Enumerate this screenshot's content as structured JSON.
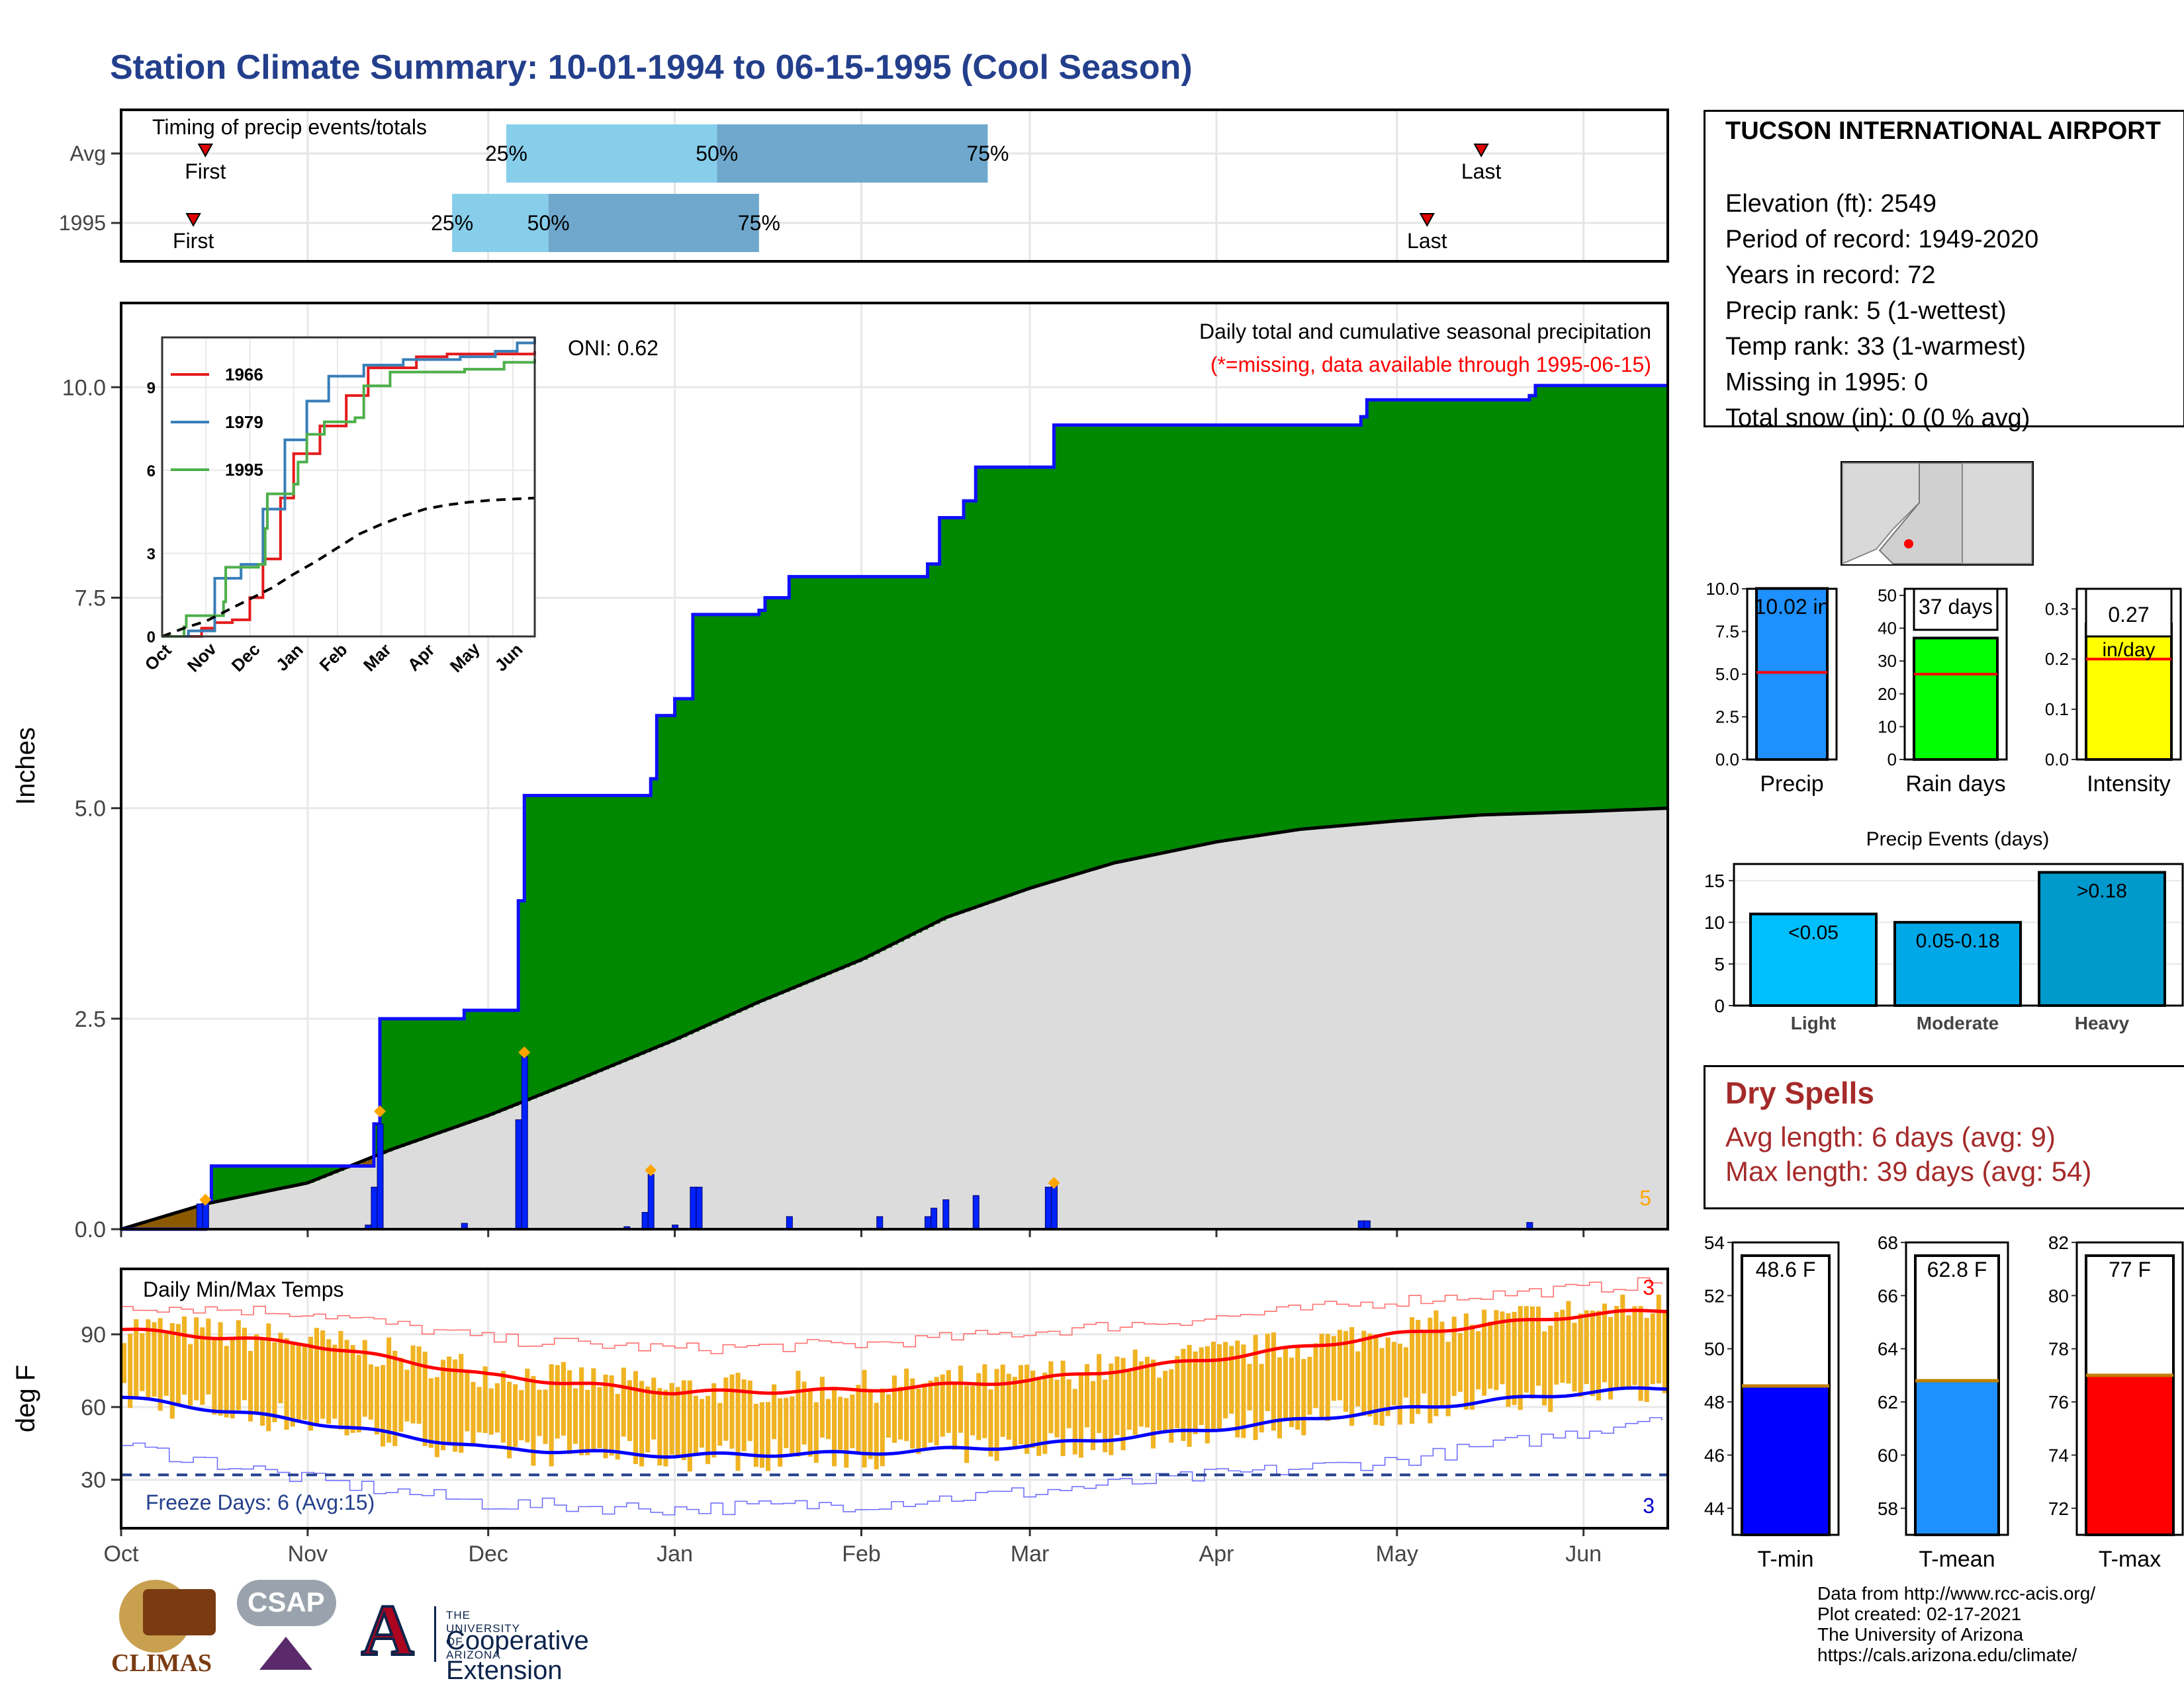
{
  "title": "Station Climate Summary: 10-01-1994 to 06-15-1995 (Cool Season)",
  "station": {
    "name": "TUCSON INTERNATIONAL AIRPORT",
    "lines": [
      "Elevation (ft): 2549",
      "Period of record: 1949-2020",
      "Years in record: 72",
      "Precip rank: 5 (1-wettest)",
      "Temp rank: 33 (1-warmest)",
      "Missing in 1995: 0",
      "Total snow (in): 0 (0 % avg)"
    ]
  },
  "timing_panel": {
    "label": "Timing of precip events/totals",
    "rows": [
      {
        "name": "Avg",
        "first_label": "First",
        "last_label": "Last",
        "first_date": "1994-10-15",
        "last_date": "1995-05-15",
        "q25": "1994-12-04",
        "q50": "1995-01-08",
        "q75": "1995-02-22",
        "q25_label": "25%",
        "q50_label": "50%",
        "q75_label": "75%"
      },
      {
        "name": "1995",
        "first_label": "First",
        "last_label": "Last",
        "first_date": "1994-10-13",
        "last_date": "1995-05-06",
        "q25": "1994-11-25",
        "q50": "1994-12-11",
        "q75": "1995-01-15",
        "q25_label": "25%",
        "q50_label": "50%",
        "q75_label": "75%"
      }
    ]
  },
  "chart_data": [
    {
      "type": "area",
      "title": "Daily total and cumulative seasonal precipitation",
      "subtitle": "(*=missing, data available through 1995-06-15)",
      "ylabel": "Inches",
      "ylim": [
        0,
        11
      ],
      "yticks": [
        "0.0",
        "2.5",
        "5.0",
        "7.5",
        "10.0"
      ],
      "xlim": [
        "1994-10-01",
        "1995-06-15"
      ],
      "oni_label": "ONI: 0.62",
      "rank_label": "5",
      "cumulative_1995": [
        [
          "1994-10-01",
          0
        ],
        [
          "1994-10-15",
          0.35
        ],
        [
          "1994-10-16",
          0.75
        ],
        [
          "1994-11-11",
          0.75
        ],
        [
          "1994-11-12",
          1.25
        ],
        [
          "1994-11-13",
          2.5
        ],
        [
          "1994-11-26",
          2.5
        ],
        [
          "1994-11-27",
          2.6
        ],
        [
          "1994-12-05",
          2.6
        ],
        [
          "1994-12-06",
          3.9
        ],
        [
          "1994-12-07",
          5.15
        ],
        [
          "1994-12-27",
          5.15
        ],
        [
          "1994-12-28",
          5.35
        ],
        [
          "1994-12-29",
          6.1
        ],
        [
          "1995-01-01",
          6.3
        ],
        [
          "1995-01-03",
          6.3
        ],
        [
          "1995-01-04",
          7.3
        ],
        [
          "1995-01-15",
          7.35
        ],
        [
          "1995-01-16",
          7.5
        ],
        [
          "1995-01-20",
          7.75
        ],
        [
          "1995-02-11",
          7.75
        ],
        [
          "1995-02-12",
          7.9
        ],
        [
          "1995-02-14",
          8.45
        ],
        [
          "1995-02-18",
          8.65
        ],
        [
          "1995-02-20",
          9.05
        ],
        [
          "1995-03-04",
          9.05
        ],
        [
          "1995-03-05",
          9.55
        ],
        [
          "1995-04-25",
          9.65
        ],
        [
          "1995-04-26",
          9.85
        ],
        [
          "1995-05-23",
          9.9
        ],
        [
          "1995-05-24",
          10.02
        ],
        [
          "1995-06-15",
          10.02
        ]
      ],
      "average_cumulative": [
        [
          "1994-10-01",
          0
        ],
        [
          "1994-10-15",
          0.3
        ],
        [
          "1994-11-01",
          0.55
        ],
        [
          "1994-11-15",
          0.95
        ],
        [
          "1994-12-01",
          1.35
        ],
        [
          "1994-12-15",
          1.75
        ],
        [
          "1995-01-01",
          2.25
        ],
        [
          "1995-01-15",
          2.7
        ],
        [
          "1995-02-01",
          3.2
        ],
        [
          "1995-02-15",
          3.7
        ],
        [
          "1995-03-01",
          4.05
        ],
        [
          "1995-03-15",
          4.35
        ],
        [
          "1995-04-01",
          4.6
        ],
        [
          "1995-04-15",
          4.75
        ],
        [
          "1995-05-01",
          4.85
        ],
        [
          "1995-05-15",
          4.92
        ],
        [
          "1995-06-01",
          4.96
        ],
        [
          "1995-06-15",
          5.0
        ]
      ],
      "daily_bars": [
        [
          "1994-10-14",
          0.3
        ],
        [
          "1994-10-15",
          0.35
        ],
        [
          "1994-11-11",
          0.05
        ],
        [
          "1994-11-12",
          0.5
        ],
        [
          "1994-11-13",
          1.25
        ],
        [
          "1994-11-27",
          0.07
        ],
        [
          "1994-12-06",
          1.3
        ],
        [
          "1994-12-07",
          2.05
        ],
        [
          "1994-12-24",
          0.03
        ],
        [
          "1994-12-27",
          0.2
        ],
        [
          "1994-12-28",
          0.65
        ],
        [
          "1995-01-01",
          0.05
        ],
        [
          "1995-01-04",
          0.5
        ],
        [
          "1995-01-05",
          0.5
        ],
        [
          "1995-01-20",
          0.15
        ],
        [
          "1995-02-04",
          0.15
        ],
        [
          "1995-02-12",
          0.15
        ],
        [
          "1995-02-13",
          0.25
        ],
        [
          "1995-02-15",
          0.35
        ],
        [
          "1995-02-20",
          0.4
        ],
        [
          "1995-03-04",
          0.5
        ],
        [
          "1995-03-05",
          0.55
        ],
        [
          "1995-04-25",
          0.1
        ],
        [
          "1995-04-26",
          0.1
        ],
        [
          "1995-05-23",
          0.08
        ]
      ],
      "record_markers": [
        [
          "1994-10-15",
          0.35
        ],
        [
          "1994-11-13",
          1.4
        ],
        [
          "1994-12-07",
          2.1
        ],
        [
          "1994-12-28",
          0.7
        ],
        [
          "1995-03-05",
          0.55
        ]
      ],
      "colors": {
        "above_avg": "#008800",
        "below_avg": "#8b5a00",
        "avg_fill": "#dcdcdc",
        "bars": "#0022ff",
        "markers": "#ffa500"
      }
    },
    {
      "type": "line",
      "title": "",
      "xlabels": [
        "Oct",
        "Nov",
        "Dec",
        "Jan",
        "Feb",
        "Mar",
        "Apr",
        "May",
        "Jun"
      ],
      "yticks": [
        "0",
        "3",
        "6",
        "9"
      ],
      "ylim": [
        0,
        10.8
      ],
      "series": [
        {
          "name": "1966",
          "color": "#e41a1c",
          "values": [
            [
              0,
              0
            ],
            [
              0.9,
              0.3
            ],
            [
              1.2,
              0.5
            ],
            [
              1.6,
              0.6
            ],
            [
              2.0,
              1.4
            ],
            [
              2.3,
              2.8
            ],
            [
              2.7,
              5.0
            ],
            [
              3.0,
              6.6
            ],
            [
              3.6,
              7.6
            ],
            [
              4.2,
              8.7
            ],
            [
              4.7,
              9.7
            ],
            [
              5.8,
              10.1
            ],
            [
              6.5,
              10.2
            ],
            [
              8.5,
              10.3
            ]
          ]
        },
        {
          "name": "1979",
          "color": "#377eb8",
          "values": [
            [
              0,
              0
            ],
            [
              0.6,
              0.2
            ],
            [
              1.2,
              2.1
            ],
            [
              1.8,
              2.6
            ],
            [
              2.3,
              4.6
            ],
            [
              2.8,
              7.1
            ],
            [
              3.3,
              8.5
            ],
            [
              3.8,
              9.4
            ],
            [
              4.6,
              9.8
            ],
            [
              5.5,
              10.0
            ],
            [
              6.8,
              10.1
            ],
            [
              7.6,
              10.3
            ],
            [
              8.1,
              10.6
            ],
            [
              8.5,
              10.8
            ]
          ]
        },
        {
          "name": "1995",
          "color": "#4daf4a",
          "values": [
            [
              0,
              0
            ],
            [
              0.5,
              0.35
            ],
            [
              0.55,
              0.75
            ],
            [
              1.4,
              1.25
            ],
            [
              1.45,
              2.5
            ],
            [
              2.2,
              2.6
            ],
            [
              2.35,
              3.9
            ],
            [
              2.4,
              5.15
            ],
            [
              3.0,
              5.5
            ],
            [
              3.1,
              6.3
            ],
            [
              3.3,
              7.3
            ],
            [
              3.7,
              7.75
            ],
            [
              4.4,
              7.9
            ],
            [
              4.6,
              9.05
            ],
            [
              5.2,
              9.55
            ],
            [
              6.9,
              9.65
            ],
            [
              7.8,
              9.9
            ],
            [
              8.5,
              10.02
            ]
          ]
        },
        {
          "name": "Average",
          "color": "#000000",
          "values": [
            [
              0,
              0
            ],
            [
              0.5,
              0.3
            ],
            [
              1.0,
              0.55
            ],
            [
              1.5,
              0.95
            ],
            [
              2.0,
              1.35
            ],
            [
              2.5,
              1.75
            ],
            [
              3.0,
              2.25
            ],
            [
              3.5,
              2.7
            ],
            [
              4.0,
              3.2
            ],
            [
              4.5,
              3.7
            ],
            [
              5.0,
              4.05
            ],
            [
              5.5,
              4.35
            ],
            [
              6.0,
              4.6
            ],
            [
              6.5,
              4.75
            ],
            [
              7.0,
              4.85
            ],
            [
              7.5,
              4.92
            ],
            [
              8.0,
              4.96
            ],
            [
              8.5,
              5.0
            ]
          ]
        }
      ]
    },
    {
      "type": "bar",
      "title": "Daily Min/Max Temps",
      "ylabel": "deg F",
      "yticks": [
        "30",
        "60",
        "90"
      ],
      "ylim": [
        10,
        117
      ],
      "xlabels": [
        "Oct",
        "Nov",
        "Dec",
        "Jan",
        "Feb",
        "Mar",
        "Apr",
        "May",
        "Jun"
      ],
      "freeze_label": "Freeze Days: 6 (Avg:15)",
      "freeze_line": 32,
      "max_rank_label": "3",
      "min_rank_label": "3",
      "normal_max": [
        [
          0,
          92
        ],
        [
          31,
          86
        ],
        [
          61,
          73
        ],
        [
          92,
          66
        ],
        [
          123,
          67
        ],
        [
          151,
          71
        ],
        [
          182,
          80
        ],
        [
          212,
          90
        ],
        [
          243,
          98
        ],
        [
          257,
          100
        ]
      ],
      "normal_min": [
        [
          0,
          64
        ],
        [
          31,
          54
        ],
        [
          61,
          43
        ],
        [
          92,
          40
        ],
        [
          123,
          41
        ],
        [
          151,
          44
        ],
        [
          182,
          51
        ],
        [
          212,
          59
        ],
        [
          243,
          66
        ],
        [
          257,
          68
        ]
      ],
      "record_max": [
        [
          0,
          102
        ],
        [
          31,
          99
        ],
        [
          61,
          88
        ],
        [
          92,
          84
        ],
        [
          123,
          86
        ],
        [
          151,
          91
        ],
        [
          182,
          97
        ],
        [
          212,
          104
        ],
        [
          243,
          109
        ],
        [
          257,
          112
        ]
      ],
      "record_min": [
        [
          0,
          44
        ],
        [
          31,
          30
        ],
        [
          61,
          20
        ],
        [
          92,
          18
        ],
        [
          123,
          20
        ],
        [
          151,
          25
        ],
        [
          182,
          32
        ],
        [
          212,
          38
        ],
        [
          243,
          50
        ],
        [
          257,
          58
        ]
      ],
      "colors": {
        "bars": "#f0b323",
        "norm_max": "#ff0000",
        "norm_min": "#0000ff",
        "freeze": "#233f8c"
      }
    },
    {
      "type": "bar",
      "title": "",
      "categories": [
        "Precip",
        "Rain days",
        "Intensity"
      ],
      "values": [
        10.02,
        37,
        0.27
      ],
      "value_labels": [
        "10.02 in",
        "37 days",
        "0.27"
      ],
      "intensity_unit": "in/day",
      "averages": [
        5.1,
        26,
        0.2
      ],
      "ylims": [
        [
          0,
          10
        ],
        [
          0,
          52
        ],
        [
          0,
          0.34
        ]
      ],
      "yticks": [
        [
          "0.0",
          "2.5",
          "5.0",
          "7.5",
          "10.0"
        ],
        [
          "0",
          "10",
          "20",
          "30",
          "40",
          "50"
        ],
        [
          "0.0",
          "0.1",
          "0.2",
          "0.3"
        ]
      ],
      "colors": [
        "#1e90ff",
        "#00ff00",
        "#ffff00"
      ]
    },
    {
      "type": "bar",
      "title": "Precip Events (days)",
      "categories": [
        "Light",
        "Moderate",
        "Heavy"
      ],
      "values": [
        11,
        10,
        16
      ],
      "value_labels": [
        "<0.05",
        "0.05-0.18",
        ">0.18"
      ],
      "yticks": [
        "0",
        "5",
        "10",
        "15"
      ],
      "ylim": [
        0,
        17
      ],
      "colors": [
        "#00bfff",
        "#00a8e8",
        "#0099cc"
      ]
    },
    {
      "type": "bar",
      "title": "",
      "categories": [
        "T-min",
        "T-mean",
        "T-max"
      ],
      "values": [
        48.6,
        62.8,
        77
      ],
      "value_labels": [
        "48.6 F",
        "62.8 F",
        "77 F"
      ],
      "averages": [
        48.6,
        62.8,
        77
      ],
      "ylims": [
        [
          43,
          54
        ],
        [
          57,
          68
        ],
        [
          71,
          82
        ]
      ],
      "yticks": [
        [
          "44",
          "46",
          "48",
          "50",
          "52",
          "54"
        ],
        [
          "58",
          "60",
          "62",
          "64",
          "66",
          "68"
        ],
        [
          "72",
          "74",
          "76",
          "78",
          "80",
          "82"
        ]
      ],
      "colors": [
        "#0000ff",
        "#1e90ff",
        "#ff0000"
      ]
    }
  ],
  "dry_spells": {
    "title": "Dry Spells",
    "avg_line": "Avg length: 6 days (avg: 9)",
    "max_line": "Max length: 39 days (avg: 54)"
  },
  "credits": {
    "line1": "Data from http://www.rcc-acis.org/",
    "line2": "Plot created: 02-17-2021",
    "line3": "The University of Arizona",
    "line4": "https://cals.arizona.edu/climate/"
  },
  "logos": {
    "climas": "CLIMAS",
    "csap": "CSAP",
    "ua_small": "THE UNIVERSITY OF ARIZONA",
    "ua_big": "Cooperative Extension",
    "ua_mark": "A"
  },
  "map": {
    "marker_color": "#ff0000"
  }
}
